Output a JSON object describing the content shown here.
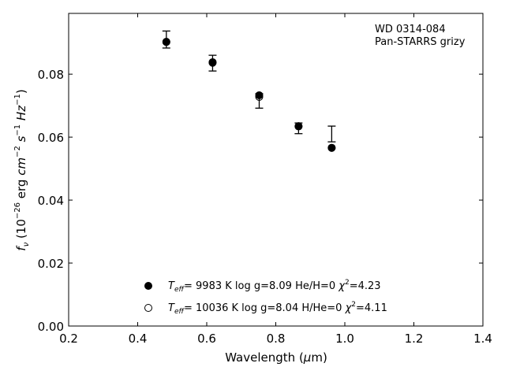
{
  "chart_data": {
    "type": "scatter",
    "annotation": [
      "WD 0314-084",
      "Pan-STARRS grizy"
    ],
    "xlabel_main": "Wavelength (",
    "xlabel_sym": "μ",
    "xlabel_end": "m)",
    "ylabel_sym": "f",
    "ylabel_sub": "ν",
    "ylabel_rest": " (10",
    "ylabel_exp1": "−26",
    "ylabel_mid1": " erg ",
    "ylabel_cm": "cm",
    "ylabel_exp2": "−2",
    "ylabel_s": " s",
    "ylabel_exp3": "−1",
    "ylabel_hz": " Hz",
    "ylabel_exp4": "−1",
    "ylabel_end": ")",
    "xlim": [
      0.2,
      1.4
    ],
    "ylim": [
      0.0,
      0.0993
    ],
    "xticks": [
      0.2,
      0.4,
      0.6,
      0.8,
      1.0,
      1.2,
      1.4
    ],
    "xtick_labels": [
      "0.2",
      "0.4",
      "0.6",
      "0.8",
      "1.0",
      "1.2",
      "1.4"
    ],
    "yticks": [
      0.0,
      0.02,
      0.04,
      0.06,
      0.08
    ],
    "ytick_labels": [
      "0.00",
      "0.02",
      "0.04",
      "0.06",
      "0.08"
    ],
    "grid": false,
    "legend_placement": "lower-center",
    "observed": {
      "x": [
        0.483,
        0.617,
        0.752,
        0.866,
        0.962
      ],
      "y": [
        0.091,
        0.0835,
        0.0715,
        0.0628,
        0.061
      ],
      "yerr": [
        0.0027,
        0.0025,
        0.0023,
        0.0017,
        0.0025
      ],
      "style": "errorbar-caps-only"
    },
    "series": [
      {
        "name": "Teff= 9983 K log g=8.09 He/H=0 χ2=4.23",
        "marker": "filled-circle",
        "color": "#000000",
        "x": [
          0.483,
          0.617,
          0.752,
          0.866,
          0.962
        ],
        "y": [
          0.0902,
          0.0836,
          0.0733,
          0.0635,
          0.0566
        ]
      },
      {
        "name": "Teff= 10036 K log g=8.04 H/He=0 χ2=4.11",
        "marker": "open-circle",
        "color": "#000000",
        "x": [
          0.483,
          0.617,
          0.752,
          0.866,
          0.962
        ],
        "y": [
          0.0903,
          0.0838,
          0.0728,
          0.0634,
          0.0566
        ]
      }
    ],
    "legend": [
      {
        "t": "T",
        "sub": "eff",
        "a": "=  9983 K  log g=8.09  He/H=0  ",
        "chi": "χ",
        "exp": "2",
        "b": "=4.23"
      },
      {
        "t": "T",
        "sub": "eff",
        "a": "= 10036 K  log g=8.04  H/He=0  ",
        "chi": "χ",
        "exp": "2",
        "b": "=4.11"
      }
    ]
  }
}
